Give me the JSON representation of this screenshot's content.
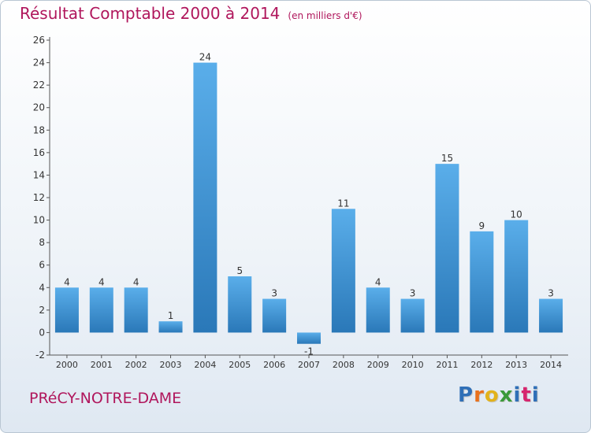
{
  "chart_data": {
    "type": "bar",
    "title": "Résultat Comptable 2000 à 2014",
    "subtitle": "(en milliers d'€)",
    "categories": [
      "2000",
      "2001",
      "2002",
      "2003",
      "2004",
      "2005",
      "2006",
      "2007",
      "2008",
      "2009",
      "2010",
      "2011",
      "2012",
      "2013",
      "2014"
    ],
    "values": [
      4,
      4,
      4,
      1,
      24,
      5,
      3,
      -1,
      11,
      4,
      3,
      15,
      9,
      10,
      3
    ],
    "ylim": [
      -2,
      26
    ],
    "yticks": [
      -2,
      0,
      2,
      4,
      6,
      8,
      10,
      12,
      14,
      16,
      18,
      20,
      22,
      24,
      26
    ],
    "xlabel": "",
    "ylabel": "",
    "grid": false,
    "bar_color": "#4d9fdb"
  },
  "footer": {
    "commune": "PRéCY-NOTRE-DAME",
    "logo_letters": [
      "P",
      "r",
      "o",
      "x",
      "i",
      "t",
      "i"
    ],
    "logo_colors": [
      "#2f6fb7",
      "#e9711c",
      "#e2b21c",
      "#3a9a3a",
      "#2f6fb7",
      "#d6246e",
      "#2f6fb7"
    ]
  }
}
